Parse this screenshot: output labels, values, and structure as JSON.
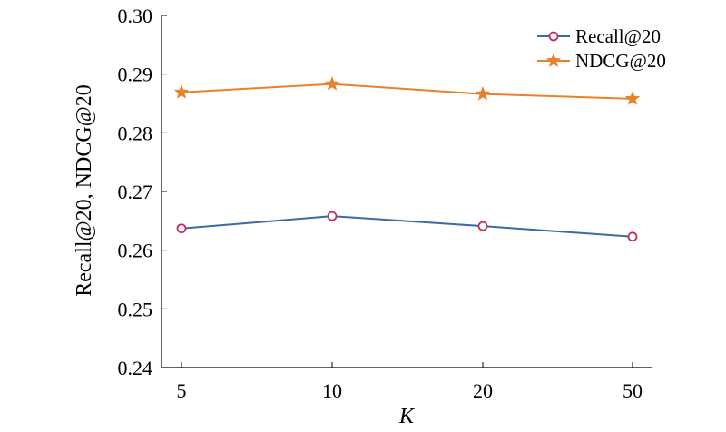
{
  "chart_data": {
    "type": "line",
    "categories": [
      "5",
      "10",
      "20",
      "50"
    ],
    "xlabel": "K",
    "ylabel": "Recall@20, NDCG@20",
    "ylim": [
      0.24,
      0.3
    ],
    "yticks": [
      "0.24",
      "0.25",
      "0.26",
      "0.27",
      "0.28",
      "0.29",
      "0.30"
    ],
    "grid": false,
    "legend_position": "top-right",
    "series": [
      {
        "name": "Recall@20",
        "values": [
          0.2637,
          0.2658,
          0.2641,
          0.2623
        ],
        "color": "#3a6aa8",
        "marker": "circle",
        "marker_color": "#c0305a"
      },
      {
        "name": "NDCG@20",
        "values": [
          0.2869,
          0.2883,
          0.2866,
          0.2858
        ],
        "color": "#e8812b",
        "marker": "star",
        "marker_color": "#e8812b"
      }
    ]
  }
}
